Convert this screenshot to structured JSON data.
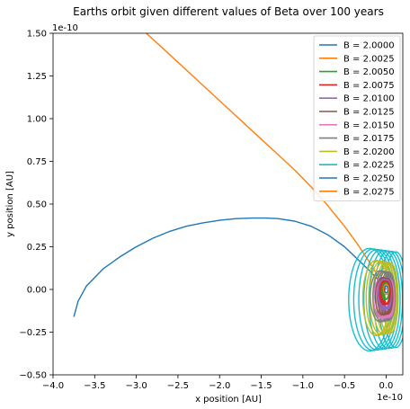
{
  "chart_data": {
    "type": "line",
    "title": "Earths orbit given different values of Beta over 100 years",
    "xlabel": "x position [AU]",
    "ylabel": "y position [AU]",
    "xlim": [
      -4.0,
      0.2
    ],
    "ylim": [
      -0.5,
      1.5
    ],
    "x_scale_label": "1e-10",
    "y_scale_label": "1e-10",
    "x_ticks": [
      {
        "value": -4.0,
        "label": "−4.0"
      },
      {
        "value": -3.5,
        "label": "−3.5"
      },
      {
        "value": -3.0,
        "label": "−3.0"
      },
      {
        "value": -2.5,
        "label": "−2.5"
      },
      {
        "value": -2.0,
        "label": "−2.0"
      },
      {
        "value": -1.5,
        "label": "−1.5"
      },
      {
        "value": -1.0,
        "label": "−1.0"
      },
      {
        "value": -0.5,
        "label": "−0.5"
      },
      {
        "value": 0.0,
        "label": "0.0"
      }
    ],
    "y_ticks": [
      {
        "value": -0.5,
        "label": "−0.50"
      },
      {
        "value": -0.25,
        "label": "−0.25"
      },
      {
        "value": 0.0,
        "label": "0.00"
      },
      {
        "value": 0.25,
        "label": "0.25"
      },
      {
        "value": 0.5,
        "label": "0.50"
      },
      {
        "value": 0.75,
        "label": "0.75"
      },
      {
        "value": 1.0,
        "label": "1.00"
      },
      {
        "value": 1.25,
        "label": "1.25"
      },
      {
        "value": 1.5,
        "label": "1.50"
      }
    ],
    "grid": false,
    "legend_position": "top-right",
    "series": [
      {
        "name": "B = 2.0000",
        "color": "#1f77b4",
        "kind": "ellipse",
        "cx": 0.0,
        "cy": 0.0,
        "rx": 0.02,
        "ry": 0.02,
        "rotations": 1
      },
      {
        "name": "B = 2.0025",
        "color": "#ff7f0e",
        "kind": "ellipse",
        "cx": 0.0,
        "cy": 0.0,
        "rx": 0.03,
        "ry": 0.03,
        "rotations": 1
      },
      {
        "name": "B = 2.0050",
        "color": "#2ca02c",
        "kind": "ellipse",
        "cx": -0.01,
        "cy": -0.01,
        "rx": 0.04,
        "ry": 0.05,
        "rotations": 3
      },
      {
        "name": "B = 2.0075",
        "color": "#d62728",
        "kind": "ellipse",
        "cx": -0.02,
        "cy": -0.02,
        "rx": 0.06,
        "ry": 0.07,
        "rotations": 4
      },
      {
        "name": "B = 2.0100",
        "color": "#9467bd",
        "kind": "ellipse",
        "cx": -0.03,
        "cy": -0.03,
        "rx": 0.07,
        "ry": 0.09,
        "rotations": 5
      },
      {
        "name": "B = 2.0125",
        "color": "#8c564b",
        "kind": "ellipse",
        "cx": -0.04,
        "cy": -0.04,
        "rx": 0.09,
        "ry": 0.11,
        "rotations": 5
      },
      {
        "name": "B = 2.0150",
        "color": "#e377c2",
        "kind": "ellipse",
        "cx": -0.05,
        "cy": -0.05,
        "rx": 0.1,
        "ry": 0.12,
        "rotations": 6
      },
      {
        "name": "B = 2.0175",
        "color": "#7f7f7f",
        "kind": "ellipse",
        "cx": -0.07,
        "cy": -0.04,
        "rx": 0.12,
        "ry": 0.15,
        "rotations": 6
      },
      {
        "name": "B = 2.0200",
        "color": "#bcbd22",
        "kind": "ellipse",
        "cx": -0.12,
        "cy": -0.05,
        "rx": 0.16,
        "ry": 0.22,
        "rotations": 7
      },
      {
        "name": "B = 2.0225",
        "color": "#17becf",
        "kind": "ellipse",
        "cx": -0.2,
        "cy": -0.06,
        "rx": 0.25,
        "ry": 0.3,
        "rotations": 8
      },
      {
        "name": "B = 2.0250",
        "color": "#1f77b4",
        "kind": "path",
        "x": [
          -3.75,
          -3.7,
          -3.6,
          -3.4,
          -3.2,
          -3.0,
          -2.8,
          -2.6,
          -2.4,
          -2.2,
          -2.0,
          -1.8,
          -1.6,
          -1.45,
          -1.3,
          -1.1,
          -0.9,
          -0.7,
          -0.5,
          -0.35,
          -0.2,
          -0.1,
          -0.03,
          0.0
        ],
        "y": [
          -0.16,
          -0.07,
          0.02,
          0.12,
          0.19,
          0.25,
          0.3,
          0.34,
          0.37,
          0.39,
          0.405,
          0.415,
          0.418,
          0.418,
          0.415,
          0.4,
          0.37,
          0.32,
          0.25,
          0.18,
          0.11,
          0.06,
          0.02,
          0.0
        ]
      },
      {
        "name": "B = 2.0275",
        "color": "#ff7f0e",
        "kind": "path",
        "x": [
          -2.88,
          -2.7,
          -2.5,
          -2.3,
          -2.1,
          -1.9,
          -1.7,
          -1.5,
          -1.3,
          -1.1,
          -0.9,
          -0.7,
          -0.5,
          -0.35,
          -0.2,
          -0.1,
          -0.03,
          0.0
        ],
        "y": [
          1.5,
          1.42,
          1.33,
          1.24,
          1.15,
          1.06,
          0.97,
          0.88,
          0.79,
          0.7,
          0.6,
          0.49,
          0.37,
          0.27,
          0.16,
          0.08,
          0.03,
          0.0
        ]
      }
    ]
  }
}
